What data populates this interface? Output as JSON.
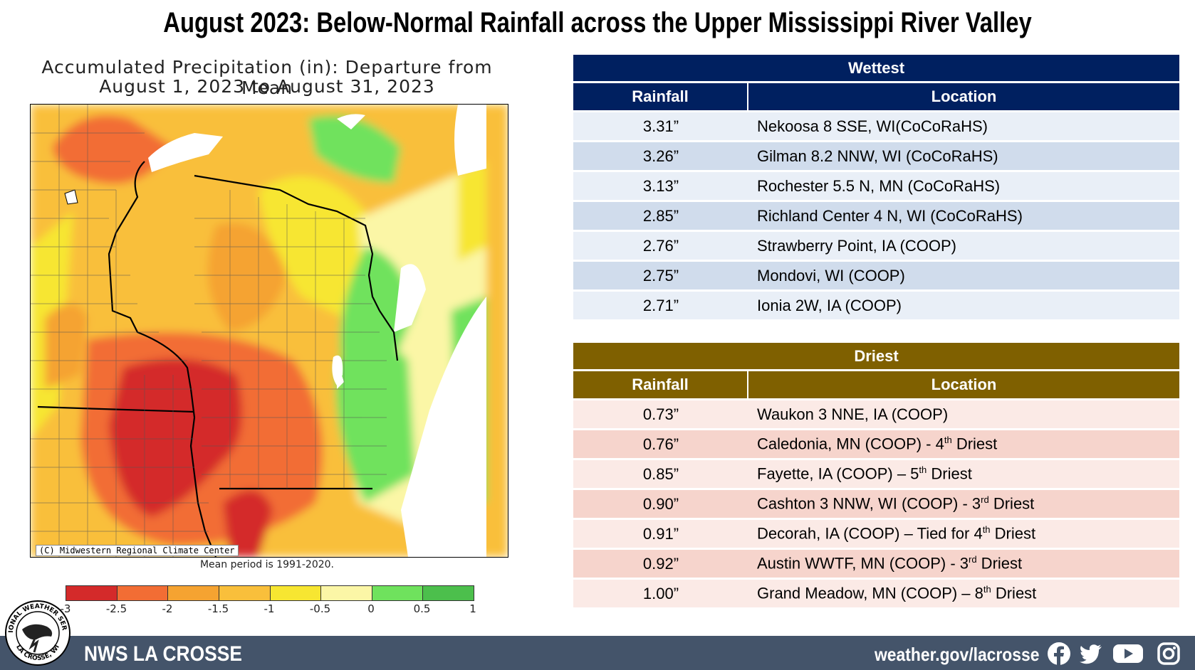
{
  "title": "August 2023:  Below-Normal Rainfall across the Upper Mississippi River Valley",
  "map": {
    "title_line1": "Accumulated Precipitation (in): Departure from Mean",
    "title_line2": "August 1, 2023 to August 31, 2023",
    "credit": "(C) Midwestern Regional Climate Center",
    "mean_period": "Mean period is 1991-2020.",
    "legend": {
      "colors": [
        "#d42a2a",
        "#f26d34",
        "#f5a331",
        "#f9bf3b",
        "#f7e631",
        "#fbf6a6",
        "#6fe25d",
        "#4cbf4c"
      ],
      "labels": [
        "-3",
        "-2.5",
        "-2",
        "-1.5",
        "-1",
        "-0.5",
        "0",
        "0.5",
        "1"
      ]
    }
  },
  "wettest": {
    "header": "Wettest",
    "col_rainfall": "Rainfall",
    "col_location": "Location",
    "header_color": "#002060",
    "rows": [
      {
        "rainfall": "3.31”",
        "location": "Nekoosa 8 SSE, WI(CoCoRaHS)"
      },
      {
        "rainfall": "3.26”",
        "location": "Gilman 8.2 NNW, WI (CoCoRaHS)"
      },
      {
        "rainfall": "3.13”",
        "location": "Rochester 5.5 N, MN (CoCoRaHS)"
      },
      {
        "rainfall": "2.85”",
        "location": "Richland Center 4 N, WI (CoCoRaHS)"
      },
      {
        "rainfall": "2.76”",
        "location": "Strawberry Point, IA (COOP)"
      },
      {
        "rainfall": "2.75”",
        "location": "Mondovi, WI (COOP)"
      },
      {
        "rainfall": "2.71”",
        "location": "Ionia 2W, IA (COOP)"
      }
    ]
  },
  "driest": {
    "header": "Driest",
    "col_rainfall": "Rainfall",
    "col_location": "Location",
    "header_color": "#7f6000",
    "rows": [
      {
        "rainfall": "0.73”",
        "location": "Waukon 3 NNE, IA (COOP)",
        "rank_num": "",
        "rank_sup": "",
        "rank_suffix": ""
      },
      {
        "rainfall": "0.76”",
        "location": "Caledonia, MN (COOP)  - 4",
        "rank_sup": "th",
        "rank_suffix": " Driest"
      },
      {
        "rainfall": "0.85”",
        "location": "Fayette, IA (COOP) – 5",
        "rank_sup": "th",
        "rank_suffix": " Driest"
      },
      {
        "rainfall": "0.90”",
        "location": "Cashton 3 NNW, WI (COOP)  - 3",
        "rank_sup": "rd",
        "rank_suffix": " Driest"
      },
      {
        "rainfall": "0.91”",
        "location": "Decorah, IA (COOP) – Tied  for 4",
        "rank_sup": "th",
        "rank_suffix": " Driest"
      },
      {
        "rainfall": "0.92”",
        "location": "Austin WWTF, MN (COOP)  - 3",
        "rank_sup": "rd",
        "rank_suffix": " Driest"
      },
      {
        "rainfall": "1.00”",
        "location": "Grand Meadow, MN (COOP) – 8",
        "rank_sup": "th",
        "rank_suffix": " Driest"
      }
    ]
  },
  "footer": {
    "office": "NWS LA CROSSE",
    "url": "weather.gov/lacrosse",
    "social_icons": [
      "facebook-icon",
      "twitter-icon",
      "youtube-icon",
      "instagram-icon"
    ],
    "logo_text_top": "NATIONAL WEATHER SERVICE",
    "logo_text_bottom": "LA CROSSE, WI"
  }
}
